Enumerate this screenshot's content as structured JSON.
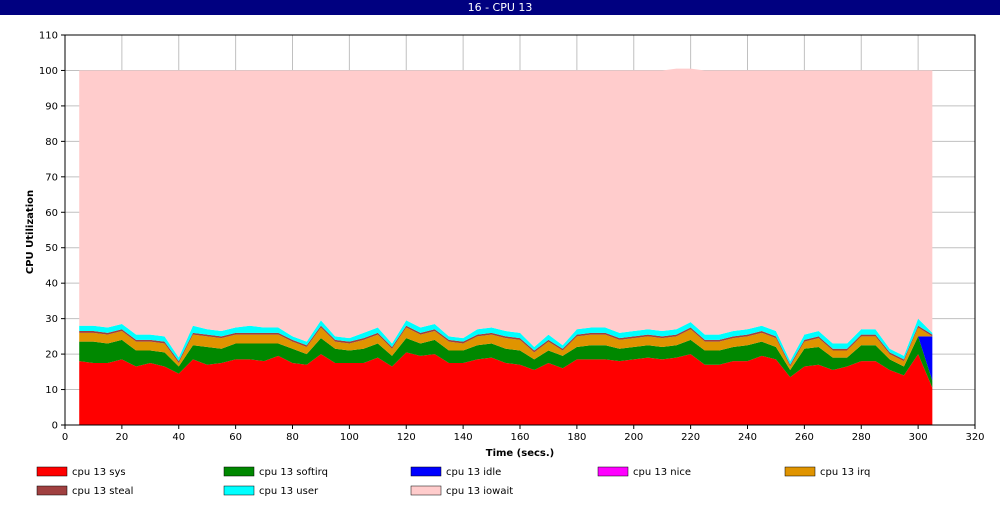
{
  "window": {
    "title": "16 - CPU 13"
  },
  "chart_data": {
    "type": "area",
    "stacked": true,
    "title": "",
    "xlabel": "Time (secs.)",
    "ylabel": "CPU Utilization",
    "xlim": [
      0,
      320
    ],
    "ylim": [
      0,
      110
    ],
    "xticks": [
      0,
      20,
      40,
      60,
      80,
      100,
      120,
      140,
      160,
      180,
      200,
      220,
      240,
      260,
      280,
      300,
      320
    ],
    "yticks": [
      0,
      10,
      20,
      30,
      40,
      50,
      60,
      70,
      80,
      90,
      100,
      110
    ],
    "grid": true,
    "legend_position": "bottom",
    "x": [
      5,
      10,
      15,
      20,
      25,
      30,
      35,
      40,
      45,
      50,
      55,
      60,
      65,
      70,
      75,
      80,
      85,
      90,
      95,
      100,
      105,
      110,
      115,
      120,
      125,
      130,
      135,
      140,
      145,
      150,
      155,
      160,
      165,
      170,
      175,
      180,
      185,
      190,
      195,
      200,
      205,
      210,
      215,
      220,
      225,
      230,
      235,
      240,
      245,
      250,
      255,
      260,
      265,
      270,
      275,
      280,
      285,
      290,
      295,
      300,
      305
    ],
    "series": [
      {
        "name": "cpu 13 sys",
        "color": "#ff0000",
        "values": [
          18,
          17.5,
          17.5,
          18.5,
          16.5,
          17.5,
          16.5,
          14.5,
          18.5,
          17,
          17.5,
          18.5,
          18.5,
          18,
          19.5,
          17.5,
          17,
          20,
          17.5,
          17.5,
          17.5,
          19,
          16.5,
          20.5,
          19.5,
          20,
          17.5,
          17.5,
          18.5,
          19,
          17.5,
          17,
          15.5,
          17.5,
          16,
          18.5,
          18.5,
          18.5,
          18,
          18.5,
          19,
          18.5,
          19,
          20,
          17,
          17,
          18,
          18,
          19.5,
          18.5,
          13.5,
          16.5,
          17,
          15.5,
          16.5,
          18,
          18,
          15.5,
          14,
          20,
          10.5
        ]
      },
      {
        "name": "cpu 13 softirq",
        "color": "#008800",
        "values": [
          5.5,
          6,
          5.5,
          5.5,
          4.5,
          3.5,
          4,
          2,
          4,
          5,
          4,
          4.5,
          4.5,
          5,
          3.5,
          4,
          3,
          4.5,
          4,
          3.5,
          4,
          4,
          3,
          4,
          3.5,
          4,
          3.5,
          3.5,
          4,
          4,
          4,
          4,
          3,
          3.5,
          3.5,
          3.5,
          4,
          4,
          3.5,
          3.5,
          3.5,
          3.5,
          3.5,
          4,
          4,
          4,
          4,
          4.5,
          4,
          3.5,
          2,
          5,
          5,
          3.5,
          2.5,
          4.5,
          4.5,
          3,
          2.5,
          5,
          2
        ]
      },
      {
        "name": "cpu 13 idle",
        "color": "#0000ff",
        "values": [
          0,
          0,
          0,
          0,
          0,
          0,
          0,
          0,
          0,
          0,
          0,
          0,
          0,
          0,
          0,
          0,
          0,
          0,
          0,
          0,
          0,
          0,
          0,
          0,
          0,
          0,
          0,
          0,
          0,
          0,
          0,
          0,
          0,
          0,
          0,
          0,
          0,
          0,
          0,
          0,
          0,
          0,
          0,
          0,
          0,
          0,
          0,
          0,
          0,
          0,
          0,
          0,
          0,
          0,
          0,
          0,
          0,
          0,
          0,
          0,
          12.5
        ]
      },
      {
        "name": "cpu 13 nice",
        "color": "#ff00ff",
        "values": [
          0,
          0,
          0,
          0,
          0,
          0,
          0,
          0,
          0,
          0,
          0,
          0,
          0,
          0,
          0,
          0,
          0,
          0,
          0,
          0,
          0,
          0,
          0,
          0,
          0,
          0,
          0,
          0,
          0,
          0,
          0,
          0,
          0,
          0,
          0,
          0,
          0,
          0,
          0,
          0,
          0,
          0,
          0,
          0,
          0,
          0,
          0,
          0,
          0,
          0,
          0,
          0,
          0,
          0,
          0,
          0,
          0,
          0,
          0,
          0,
          0
        ]
      },
      {
        "name": "cpu 13 irq",
        "color": "#e09400",
        "values": [
          2.5,
          2.5,
          2.5,
          2.5,
          2.5,
          2.5,
          2.5,
          1,
          3,
          3,
          3,
          2.5,
          2.5,
          2.5,
          2.5,
          2,
          2,
          3,
          2,
          2,
          2.5,
          2.5,
          2,
          3,
          2.5,
          2.5,
          2.5,
          2,
          2.5,
          2.5,
          3,
          3,
          2,
          2.5,
          1.5,
          3,
          3,
          3,
          2.5,
          2.5,
          2.5,
          2.5,
          2.5,
          3,
          2.5,
          2.5,
          2.5,
          2.5,
          2.5,
          2.5,
          1,
          2,
          2.5,
          2,
          2,
          2.5,
          2.5,
          1.5,
          1.5,
          2.5,
          0
        ]
      },
      {
        "name": "cpu 13 steal",
        "color": "#a04040",
        "values": [
          0.5,
          0.5,
          0.5,
          0.5,
          0.5,
          0.5,
          0.5,
          0.5,
          0.5,
          0.5,
          0.5,
          0.5,
          0.5,
          0.5,
          0.5,
          0.5,
          0.5,
          0.5,
          0.5,
          0.5,
          0.5,
          0.5,
          0.5,
          0.5,
          0.5,
          0.5,
          0.5,
          0.5,
          0.5,
          0.5,
          0.5,
          0.5,
          0.5,
          0.5,
          0.5,
          0.5,
          0.5,
          0.5,
          0.5,
          0.5,
          0.5,
          0.5,
          0.5,
          0.5,
          0.5,
          0.5,
          0.5,
          0.5,
          0.5,
          0.5,
          0.5,
          0.5,
          0.5,
          0.5,
          0.5,
          0.5,
          0.5,
          0.5,
          0.5,
          0.5,
          0.5
        ]
      },
      {
        "name": "cpu 13 user",
        "color": "#00ffff",
        "values": [
          1.5,
          1.5,
          1.5,
          1.5,
          1.5,
          1.5,
          1.5,
          1,
          2,
          1.5,
          1.5,
          1.5,
          2,
          1.5,
          1.5,
          1,
          1,
          1.5,
          1,
          1,
          1.5,
          1.5,
          1,
          1.5,
          1.5,
          1.5,
          1,
          1,
          1.5,
          1.5,
          1.5,
          1.5,
          1,
          1.5,
          1,
          1.5,
          1.5,
          1.5,
          1.5,
          1.5,
          1.5,
          1.5,
          1.5,
          1.5,
          1.5,
          1.5,
          1.5,
          1.5,
          1.5,
          1.5,
          1,
          1.5,
          1.5,
          1.5,
          1.5,
          1.5,
          1.5,
          1,
          1,
          2,
          0.5
        ]
      },
      {
        "name": "cpu 13 iowait",
        "color": "#ffcccc",
        "values": [
          72,
          72,
          72.5,
          71.5,
          74.5,
          74.5,
          75,
          81,
          72,
          73,
          73.5,
          72.5,
          72,
          72.5,
          72.5,
          75,
          76.5,
          70.5,
          75,
          75.5,
          74,
          72.5,
          77,
          70.5,
          72.5,
          71.5,
          75,
          75.5,
          73,
          72.5,
          73.5,
          74,
          78,
          74.5,
          77.5,
          73,
          72.5,
          72.5,
          74,
          73.5,
          73,
          73.5,
          73.5,
          71.5,
          74.5,
          74.5,
          73.5,
          73,
          72,
          73.5,
          82,
          74.5,
          73.5,
          77,
          77,
          73,
          73,
          78.5,
          80.5,
          70,
          74
        ]
      }
    ]
  }
}
